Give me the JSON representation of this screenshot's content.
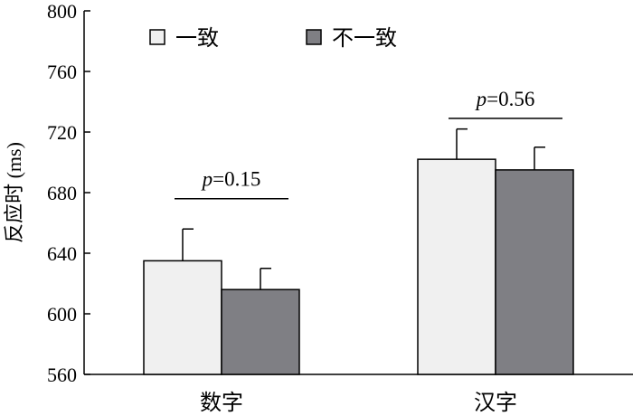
{
  "chart_data": {
    "type": "bar",
    "ylabel": "反应时 (ms)",
    "ylim": [
      560,
      800
    ],
    "yticks": [
      560,
      600,
      640,
      680,
      720,
      760,
      800
    ],
    "categories": [
      "数字",
      "汉字"
    ],
    "series": [
      {
        "name": "一致",
        "values": [
          635,
          702
        ],
        "errors": [
          21,
          20
        ],
        "color": "#f0f0f0"
      },
      {
        "name": "不一致",
        "values": [
          616,
          695
        ],
        "errors": [
          14,
          15
        ],
        "color": "#7f7f84"
      }
    ],
    "annotations": [
      {
        "category": 0,
        "p_letter": "p",
        "p_value": "=0.15",
        "y": 676
      },
      {
        "category": 1,
        "p_letter": "p",
        "p_value": "=0.56",
        "y": 729
      }
    ],
    "legend": "top-left",
    "grid": false
  }
}
